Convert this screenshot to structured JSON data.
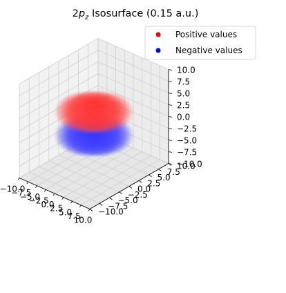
{
  "chart_data": {
    "type": "scatter",
    "projection": "3d",
    "title": {
      "prefix": "2",
      "italic": "p",
      "subscript": "z",
      "suffix": " Isosurface (0.15 a.u.)"
    },
    "xlim": [
      -10,
      10
    ],
    "ylim": [
      -10,
      10
    ],
    "zlim": [
      -10,
      10
    ],
    "x_ticks": [
      "−10.0",
      "−7.5",
      "−5.0",
      "−2.5",
      "0.0",
      "2.5",
      "5.0",
      "7.5",
      "10.0"
    ],
    "y_ticks": [
      "−10.0",
      "−7.5",
      "−5.0",
      "−2.5",
      "0.0",
      "2.5",
      "5.0",
      "7.5",
      "10.0"
    ],
    "z_ticks": [
      "−10.0",
      "−7.5",
      "−5.0",
      "−2.5",
      "0.0",
      "2.5",
      "5.0",
      "7.5",
      "10.0"
    ],
    "grid": true,
    "legend_position": "top-right",
    "series": [
      {
        "name": "Positive values",
        "color": "#ff0000",
        "lobe": "upper",
        "center": [
          0,
          0,
          2.5
        ],
        "radius": 4.6,
        "z_half_height": 2.8
      },
      {
        "name": "Negative values",
        "color": "#0000ff",
        "lobe": "lower",
        "center": [
          0,
          0,
          -2.5
        ],
        "radius": 4.6,
        "z_half_height": 2.8
      }
    ]
  }
}
